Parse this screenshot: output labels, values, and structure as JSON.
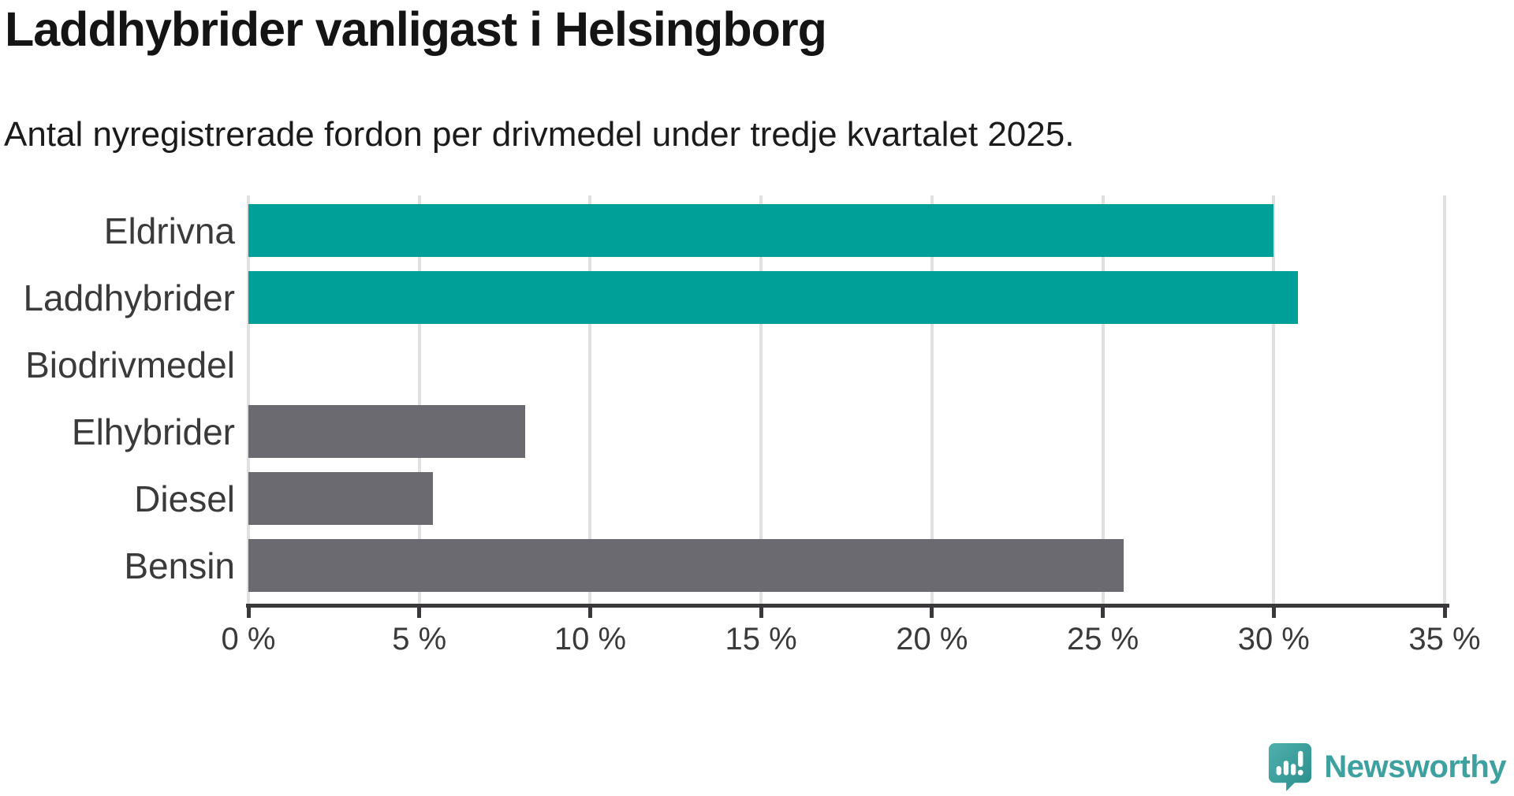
{
  "chart_data": {
    "type": "bar",
    "orientation": "horizontal",
    "title": "Laddhybrider vanligast i Helsingborg",
    "subtitle": "Antal nyregistrerade fordon per drivmedel under tredje kvartalet 2025.",
    "categories": [
      "Eldrivna",
      "Laddhybrider",
      "Biodrivmedel",
      "Elhybrider",
      "Diesel",
      "Bensin"
    ],
    "values": [
      30.0,
      30.7,
      0,
      8.1,
      5.4,
      25.6
    ],
    "unit": "%",
    "xlabel": "",
    "ylabel": "",
    "xlim": [
      0,
      35
    ],
    "x_ticks": [
      0,
      5,
      10,
      15,
      20,
      25,
      30,
      35
    ],
    "x_tick_label_suffix": " %",
    "bar_colors": [
      "#00A099",
      "#00A099",
      "#6B6A70",
      "#6B6A70",
      "#6B6A70",
      "#6B6A70"
    ],
    "highlight_color": "#00A099",
    "default_color": "#6B6A70",
    "gridline_color": "#E0E0E0",
    "axis_color": "#3A383B",
    "grid": "vertical",
    "legend": "none"
  },
  "footer": {
    "logo_text": "Newsworthy"
  }
}
